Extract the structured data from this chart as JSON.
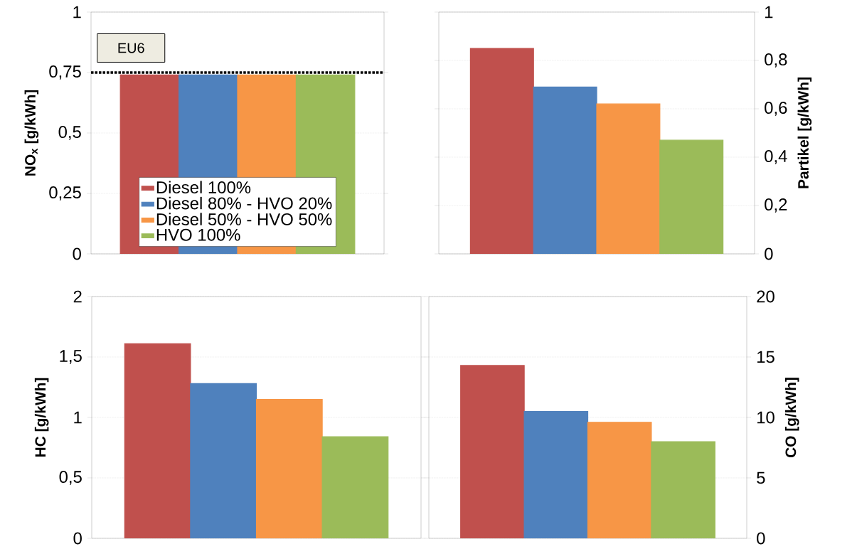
{
  "chart_data": [
    {
      "type": "bar",
      "categories": [
        null
      ],
      "ylabel": "NO$_{x}$ [g/kWh]",
      "ylim": [
        0,
        1
      ],
      "yticks": [
        0,
        {
          "value": 0.25,
          "label": "0,25"
        },
        {
          "value": 0.5,
          "label": "0,5"
        },
        {
          "value": 0.75,
          "label": "0,75"
        },
        1
      ],
      "grid": "y",
      "legend": "bottom",
      "ref_lines": [
        {
          "axis": "y",
          "value": 0.75,
          "label": "EU6",
          "color": "#000000",
          "line_style": "dotted"
        }
      ],
      "series": [
        {
          "name": "Diesel 100%",
          "color": "#c0504d",
          "values": [
            0.74
          ]
        },
        {
          "name": "Diesel 80% - HVO 20%",
          "color": "#4f81bd",
          "values": [
            0.74
          ]
        },
        {
          "name": "Diesel 50% - HVO 50%",
          "color": "#f79646",
          "values": [
            0.74
          ]
        },
        {
          "name": "HVO 100%",
          "color": "#9bbb59",
          "values": [
            0.74
          ]
        }
      ]
    },
    {
      "type": "bar",
      "categories": [
        null
      ],
      "ylabel": "Partikel [g/kWh]",
      "ylim": [
        0,
        1
      ],
      "yticks": [
        0,
        {
          "value": 0.2,
          "label": "0,2"
        },
        {
          "value": 0.4,
          "label": "0,4"
        },
        {
          "value": 0.6,
          "label": "0,6"
        },
        {
          "value": 0.8,
          "label": "0,8"
        },
        1
      ],
      "grid": "y",
      "series": [
        {
          "color": "#c0504d",
          "values": [
            0.85
          ]
        },
        {
          "color": "#4f81bd",
          "values": [
            0.69
          ]
        },
        {
          "color": "#f79646",
          "values": [
            0.62
          ]
        },
        {
          "color": "#9bbb59",
          "values": [
            0.47
          ]
        }
      ]
    },
    {
      "type": "bar",
      "categories": [
        null
      ],
      "ylabel": "HC [g/kWh]",
      "ylim": [
        0,
        2
      ],
      "yticks": [
        0,
        {
          "value": 0.5,
          "label": "0,5"
        },
        1,
        {
          "value": 1.5,
          "label": "1,5"
        },
        2
      ],
      "grid": "y",
      "series": [
        {
          "color": "#c0504d",
          "values": [
            1.61
          ]
        },
        {
          "color": "#4f81bd",
          "values": [
            1.28
          ]
        },
        {
          "color": "#f79646",
          "values": [
            1.15
          ]
        },
        {
          "color": "#9bbb59",
          "values": [
            0.84
          ]
        }
      ]
    },
    {
      "type": "bar",
      "categories": [
        null
      ],
      "ylabel": "CO [g/kWh]",
      "ylim": [
        0,
        20
      ],
      "yticks": [
        0,
        5,
        10,
        15,
        20
      ],
      "grid": "y",
      "series": [
        {
          "color": "#c0504d",
          "values": [
            14.3
          ]
        },
        {
          "color": "#4f81bd",
          "values": [
            10.5
          ]
        },
        {
          "color": "#f79646",
          "values": [
            9.6
          ]
        },
        {
          "color": "#9bbb59",
          "values": [
            8.0
          ]
        }
      ]
    }
  ]
}
